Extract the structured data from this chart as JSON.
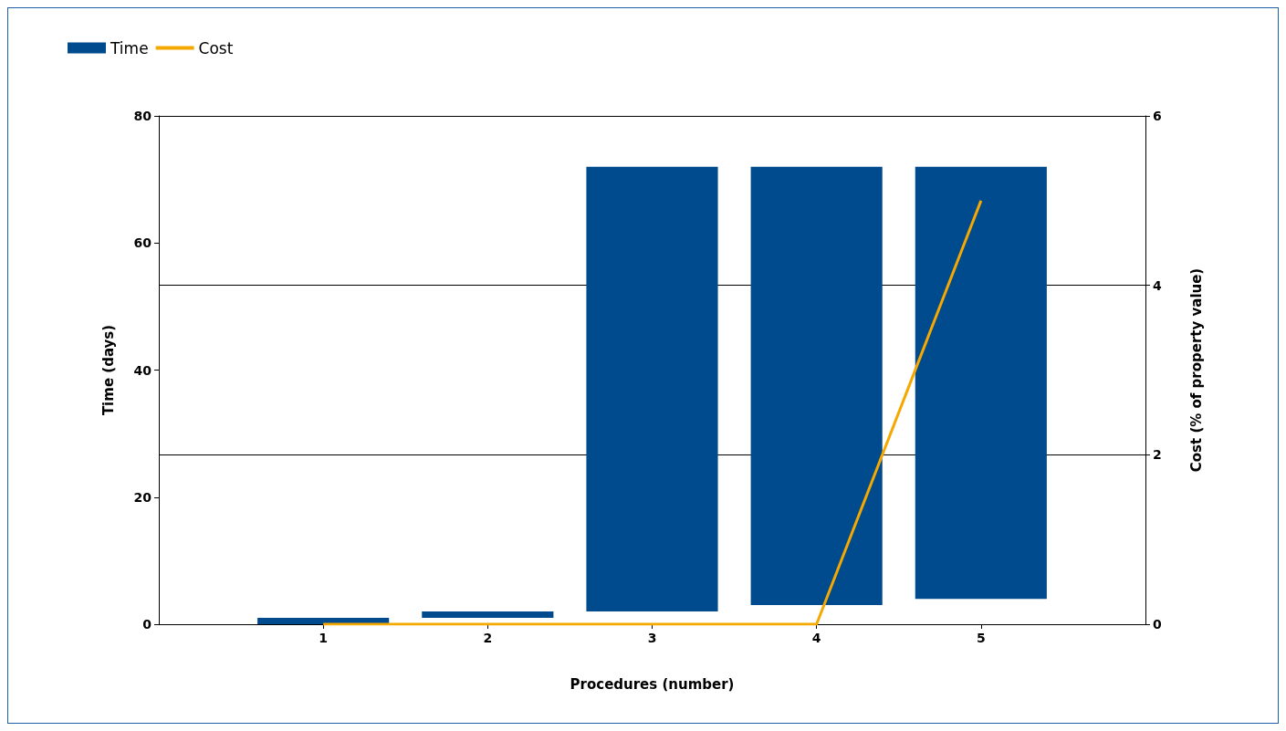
{
  "chart_data": {
    "type": "bar",
    "xlabel": "Procedures (number)",
    "ylabel": "Time (days)",
    "y2label": "Cost (% of property value)",
    "x": [
      1,
      2,
      3,
      4,
      5
    ],
    "xlim": [
      0,
      6
    ],
    "xticks": [
      1,
      2,
      3,
      4,
      5
    ],
    "ylim": [
      0,
      80
    ],
    "yticks": [
      0,
      20,
      40,
      60,
      80
    ],
    "y2lim": [
      0,
      6
    ],
    "y2ticks": [
      0,
      2,
      4,
      6
    ],
    "series": [
      {
        "name": "Time",
        "color": "#004b8d",
        "base": [
          0,
          1,
          2,
          3,
          4
        ],
        "values": [
          1,
          1,
          70,
          69,
          68
        ]
      },
      {
        "name": "Cost",
        "type": "line",
        "axis": "y2",
        "color": "#f5a800",
        "values": [
          0,
          0,
          0,
          0,
          5
        ]
      }
    ],
    "grid": "y2",
    "legend": "top left",
    "marker": "none",
    "line_style": "solid"
  }
}
